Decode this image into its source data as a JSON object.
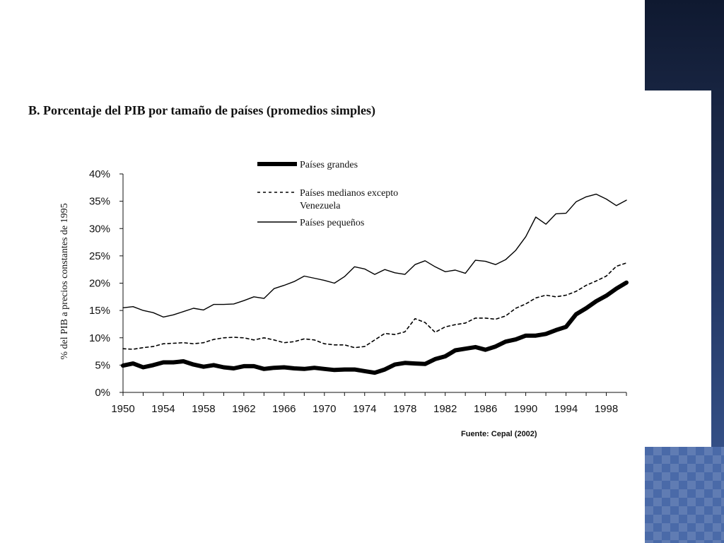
{
  "slide": {
    "title": "B. Porcentaje del PIB por tamaño de países (promedios simples)",
    "source": "Fuente: Cepal (2002)",
    "accent_colors": {
      "band_dark": "#1a2745",
      "band_light": "#4a6aa8"
    }
  },
  "chart_data": {
    "type": "line",
    "title": "B. Porcentaje del PIB por tamaño de países (promedios simples)",
    "xlabel": "",
    "ylabel": "% del PIB a precios constantes de 1995",
    "xlim": [
      1950,
      2000
    ],
    "ylim": [
      0,
      40
    ],
    "x_ticks": [
      "1950",
      "1954",
      "1958",
      "1962",
      "1966",
      "1970",
      "1974",
      "1978",
      "1982",
      "1986",
      "1990",
      "1994",
      "1998"
    ],
    "y_ticks": [
      "0%",
      "5%",
      "10%",
      "15%",
      "20%",
      "25%",
      "30%",
      "35%",
      "40%"
    ],
    "grid": false,
    "legend_position": "top-center",
    "x": [
      1950,
      1951,
      1952,
      1953,
      1954,
      1955,
      1956,
      1957,
      1958,
      1959,
      1960,
      1961,
      1962,
      1963,
      1964,
      1965,
      1966,
      1967,
      1968,
      1969,
      1970,
      1971,
      1972,
      1973,
      1974,
      1975,
      1976,
      1977,
      1978,
      1979,
      1980,
      1981,
      1982,
      1983,
      1984,
      1985,
      1986,
      1987,
      1988,
      1989,
      1990,
      1991,
      1992,
      1993,
      1994,
      1995,
      1996,
      1997,
      1998,
      1999,
      2000
    ],
    "series": [
      {
        "name": "Países grandes",
        "style": "thick-solid",
        "values": [
          4.9,
          5.3,
          4.6,
          5.0,
          5.5,
          5.5,
          5.7,
          5.1,
          4.7,
          5.0,
          4.6,
          4.4,
          4.8,
          4.8,
          4.3,
          4.5,
          4.6,
          4.4,
          4.3,
          4.5,
          4.3,
          4.1,
          4.2,
          4.2,
          3.9,
          3.6,
          4.2,
          5.1,
          5.4,
          5.3,
          5.2,
          6.1,
          6.6,
          7.7,
          8.0,
          8.3,
          7.8,
          8.4,
          9.3,
          9.7,
          10.4,
          10.4,
          10.7,
          11.4,
          12.0,
          14.3,
          15.4,
          16.7,
          17.7,
          19.0,
          20.1
        ]
      },
      {
        "name": "Países medianos excepto Venezuela",
        "style": "dashed",
        "values": [
          8.0,
          7.9,
          8.2,
          8.4,
          8.9,
          9.0,
          9.1,
          8.9,
          9.1,
          9.7,
          10.0,
          10.1,
          10.0,
          9.6,
          10.0,
          9.6,
          9.1,
          9.3,
          9.8,
          9.6,
          8.9,
          8.7,
          8.7,
          8.2,
          8.4,
          9.6,
          10.8,
          10.6,
          11.1,
          13.5,
          12.8,
          11.0,
          12.0,
          12.4,
          12.7,
          13.6,
          13.6,
          13.4,
          14.0,
          15.4,
          16.2,
          17.3,
          17.8,
          17.5,
          17.8,
          18.5,
          19.6,
          20.4,
          21.3,
          23.1,
          23.7
        ]
      },
      {
        "name": "Países pequeños",
        "style": "thin-solid",
        "values": [
          15.5,
          15.7,
          15.0,
          14.6,
          13.8,
          14.2,
          14.8,
          15.4,
          15.1,
          16.1,
          16.1,
          16.2,
          16.8,
          17.5,
          17.2,
          19.0,
          19.6,
          20.3,
          21.3,
          20.9,
          20.5,
          20.0,
          21.2,
          23.0,
          22.6,
          21.6,
          22.5,
          21.9,
          21.6,
          23.4,
          24.1,
          23.0,
          22.1,
          22.4,
          21.8,
          24.2,
          24.0,
          23.4,
          24.3,
          26.0,
          28.5,
          32.1,
          30.8,
          32.7,
          32.8,
          34.9,
          35.8,
          36.3,
          35.4,
          34.2,
          35.2
        ]
      }
    ]
  }
}
